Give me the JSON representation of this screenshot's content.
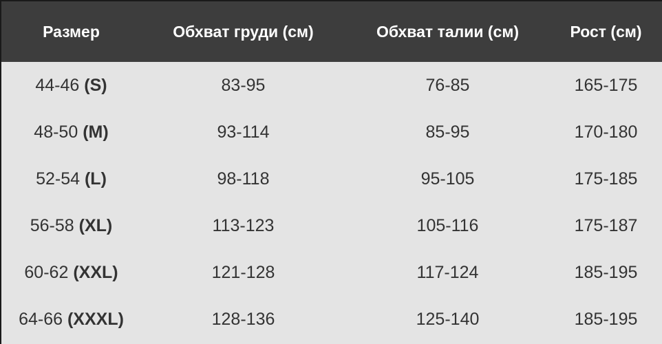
{
  "headers": [
    "Размер",
    "Обхват груди (см)",
    "Обхват талии (см)",
    "Рост (см)"
  ],
  "rows": [
    {
      "size": "44-46",
      "letter": "(S)",
      "chest": "83-95",
      "waist": "76-85",
      "height": "165-175"
    },
    {
      "size": "48-50",
      "letter": "(M)",
      "chest": "93-114",
      "waist": "85-95",
      "height": "170-180"
    },
    {
      "size": "52-54",
      "letter": "(L)",
      "chest": "98-118",
      "waist": "95-105",
      "height": "175-185"
    },
    {
      "size": "56-58",
      "letter": "(XL)",
      "chest": "113-123",
      "waist": "105-116",
      "height": "175-187"
    },
    {
      "size": "60-62",
      "letter": "(XXL)",
      "chest": "121-128",
      "waist": "117-124",
      "height": "185-195"
    },
    {
      "size": "64-66",
      "letter": "(XXXL)",
      "chest": "128-136",
      "waist": "125-140",
      "height": "185-195"
    }
  ],
  "colors": {
    "header_bg": "#3d3d3d",
    "body_bg": "#e4e4e4",
    "text": "#333333"
  }
}
